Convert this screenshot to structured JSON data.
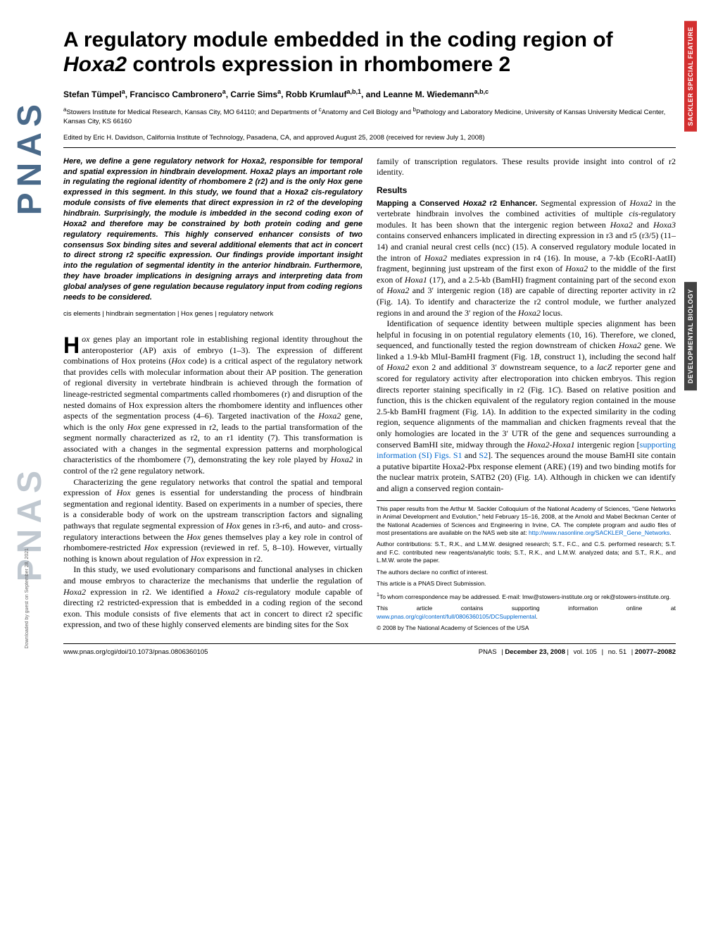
{
  "labels": {
    "sackler": "SACKLER SPECIAL FEATURE",
    "devbio": "DEVELOPMENTAL BIOLOGY"
  },
  "logo": "PNAS",
  "download_note": "Downloaded by guest on September 28, 2021",
  "title_pre": "A regulatory module embedded in the coding region of ",
  "title_italic": "Hoxa2",
  "title_post": " controls expression in rhombomere 2",
  "authors_html": "Stefan Tümpel<sup>a</sup>, Francisco Cambronero<sup>a</sup>, Carrie Sims<sup>a</sup>, Robb Krumlauf<sup>a,b,1</sup>, and Leanne M. Wiedemann<sup>a,b,c</sup>",
  "affiliations_html": "<sup>a</sup>Stowers Institute for Medical Research, Kansas City, MO 64110; and Departments of <sup>c</sup>Anatomy and Cell Biology and <sup>b</sup>Pathology and Laboratory Medicine, University of Kansas University Medical Center, Kansas City, KS 66160",
  "edited": "Edited by Eric H. Davidson, California Institute of Technology, Pasadena, CA, and approved August 25, 2008 (received for review July 1, 2008)",
  "abstract": "Here, we define a gene regulatory network for <i>Hoxa2</i>, responsible for temporal and spatial expression in hindbrain development. <i>Hoxa2</i> plays an important role in regulating the regional identity of rhombomere 2 (r2) and is the only <i>Hox</i> gene expressed in this segment. In this study, we found that a <i>Hoxa2 cis</i>-regulatory module consists of five elements that direct expression in r2 of the developing hindbrain. Surprisingly, the module is imbedded in the second coding exon of <i>Hoxa2</i> and therefore may be constrained by both protein coding and gene regulatory requirements. This highly conserved enhancer consists of two consensus Sox binding sites and several additional elements that act in concert to direct strong r2 specific expression. Our findings provide important insight into the regulation of segmental identity in the anterior hindbrain. Furthermore, they have broader implications in designing arrays and interpreting data from global analyses of gene regulation because regulatory input from coding regions needs to be considered.",
  "keywords": "cis elements | hindbrain segmentation | Hox genes | regulatory network",
  "intro1": "<i>ox</i> genes play an important role in establishing regional identity throughout the anteroposterior (AP) axis of embryo (1–3). The expression of different combinations of Hox proteins (<i>Hox</i> code) is a critical aspect of the regulatory network that provides cells with molecular information about their AP position. The generation of regional diversity in vertebrate hindbrain is achieved through the formation of lineage-restricted segmental compartments called rhombomeres (r) and disruption of the nested domains of Hox expression alters the rhombomere identity and influences other aspects of the segmentation process (4–6). Targeted inactivation of the <i>Hoxa2</i> gene, which is the only <i>Hox</i> gene expressed in r2, leads to the partial transformation of the segment normally characterized as r2, to an r1 identity (7). This transformation is associated with a changes in the segmental expression patterns and morphological characteristics of the rhombomere (7), demonstrating the key role played by <i>Hoxa2</i> in control of the r2 gene regulatory network.",
  "intro2": "Characterizing the gene regulatory networks that control the spatial and temporal expression of <i>Hox</i> genes is essential for understanding the process of hindbrain segmentation and regional identity. Based on experiments in a number of species, there is a considerable body of work on the upstream transcription factors and signaling pathways that regulate segmental expression of <i>Hox</i> genes in r3-r6, and auto- and cross-regulatory interactions between the <i>Hox</i> genes themselves play a key role in control of rhombomere-restricted <i>Hox</i> expression (reviewed in ref. 5, 8–10). However, virtually nothing is known about regulation of <i>Hox</i> expression in r2.",
  "intro3": "In this study, we used evolutionary comparisons and functional analyses in chicken and mouse embryos to characterize the mechanisms that underlie the regulation of <i>Hoxa2</i> expression in r2. We identified a <i>Hoxa2 cis</i>-regulatory module capable of directing r2 restricted-expression that is embedded in a coding region of the second exon. This module consists of five elements that act in concert to direct r2 specific expression, and two of these highly conserved elements are binding sites for the Sox",
  "col2_top": "family of transcription regulators. These results provide insight into control of r2 identity.",
  "results_head": "Results",
  "results_sub": "Mapping a Conserved <i>Hoxa2</i> r2 Enhancer.",
  "results1": " Segmental expression of <i>Hoxa2</i> in the vertebrate hindbrain involves the combined activities of multiple <i>cis</i>-regulatory modules. It has been shown that the intergenic region between <i>Hoxa2</i> and <i>Hoxa3</i> contains conserved enhancers implicated in directing expression in r3 and r5 (r3/5) (11–14) and cranial neural crest cells (ncc) (15). A conserved regulatory module located in the intron of <i>Hoxa2</i> mediates expression in r4 (16). In mouse, a 7-kb (EcoRI-AatII) fragment, beginning just upstream of the first exon of <i>Hoxa2</i> to the middle of the first exon of <i>Hoxa1</i> (17), and a 2.5-kb (BamHI) fragment containing part of the second exon of <i>Hoxa2</i> and 3′ intergenic region (18) are capable of directing reporter activity in r2 (Fig. 1<i>A</i>). To identify and characterize the r2 control module, we further analyzed regions in and around the 3′ region of the <i>Hoxa2</i> locus.",
  "results2": "Identification of sequence identity between multiple species alignment has been helpful in focusing in on potential regulatory elements (10, 16). Therefore, we cloned, sequenced, and functionally tested the region downstream of chicken <i>Hoxa2</i> gene. We linked a 1.9-kb MluI-BamHI fragment (Fig. 1<i>B</i>, construct 1), including the second half of <i>Hoxa2</i> exon 2 and additional 3′ downstream sequence, to a <i>lacZ</i> reporter gene and scored for regulatory activity after electroporation into chicken embryos. This region directs reporter staining specifically in r2 (Fig. 1<i>C</i>). Based on relative position and function, this is the chicken equivalent of the regulatory region contained in the mouse 2.5-kb BamHI fragment (Fig. 1<i>A</i>). In addition to the expected similarity in the coding region, sequence alignments of the mammalian and chicken fragments reveal that the only homologies are located in the 3′ UTR of the gene and sequences surrounding a conserved BamHI site, midway through the <i>Hoxa2-Hoxa1</i> intergenic region [<span class='link'>supporting information (SI) Figs. S1</span> and <span class='link'>S2</span>]. The sequences around the mouse BamHI site contain a putative bipartite Hoxa2-Pbx response element (ARE) (19) and two binding motifs for the nuclear matrix protein, SATB2 (20) (Fig. 1<i>A</i>). Although in chicken we can identify and align a conserved region contain-",
  "fn1": "This paper results from the Arthur M. Sackler Colloquium of the National Academy of Sciences, \"Gene Networks in Animal Development and Evolution,\" held February 15–16, 2008, at the Arnold and Mabel Beckman Center of the National Academies of Sciences and Engineering in Irvine, CA. The complete program and audio files of most presentations are available on the NAS web site at: <span class='link'>http://www.nasonline.org/SACKLER_Gene_Networks</span>.",
  "fn2": "Author contributions: S.T., R.K., and L.M.W. designed research; S.T., F.C., and C.S. performed research; S.T. and F.C. contributed new reagents/analytic tools; S.T., R.K., and L.M.W. analyzed data; and S.T., R.K., and L.M.W. wrote the paper.",
  "fn3": "The authors declare no conflict of interest.",
  "fn4": "This article is a PNAS Direct Submission.",
  "fn5": "<sup>1</sup>To whom correspondence may be addressed. E-mail: lmw@stowers-institute.org or rek@stowers-institute.org.",
  "fn6": "This article contains supporting information online at <span class='link'>www.pnas.org/cgi/content/full/0806360105/DCSupplemental</span>.",
  "fn7": "© 2008 by The National Academy of Sciences of the USA",
  "footer": {
    "doi": "www.pnas.org/cgi/doi/10.1073/pnas.0806360105",
    "journal": "PNAS",
    "date": "December 23, 2008",
    "vol": "vol. 105",
    "issue": "no. 51",
    "pages": "20077–20082"
  }
}
